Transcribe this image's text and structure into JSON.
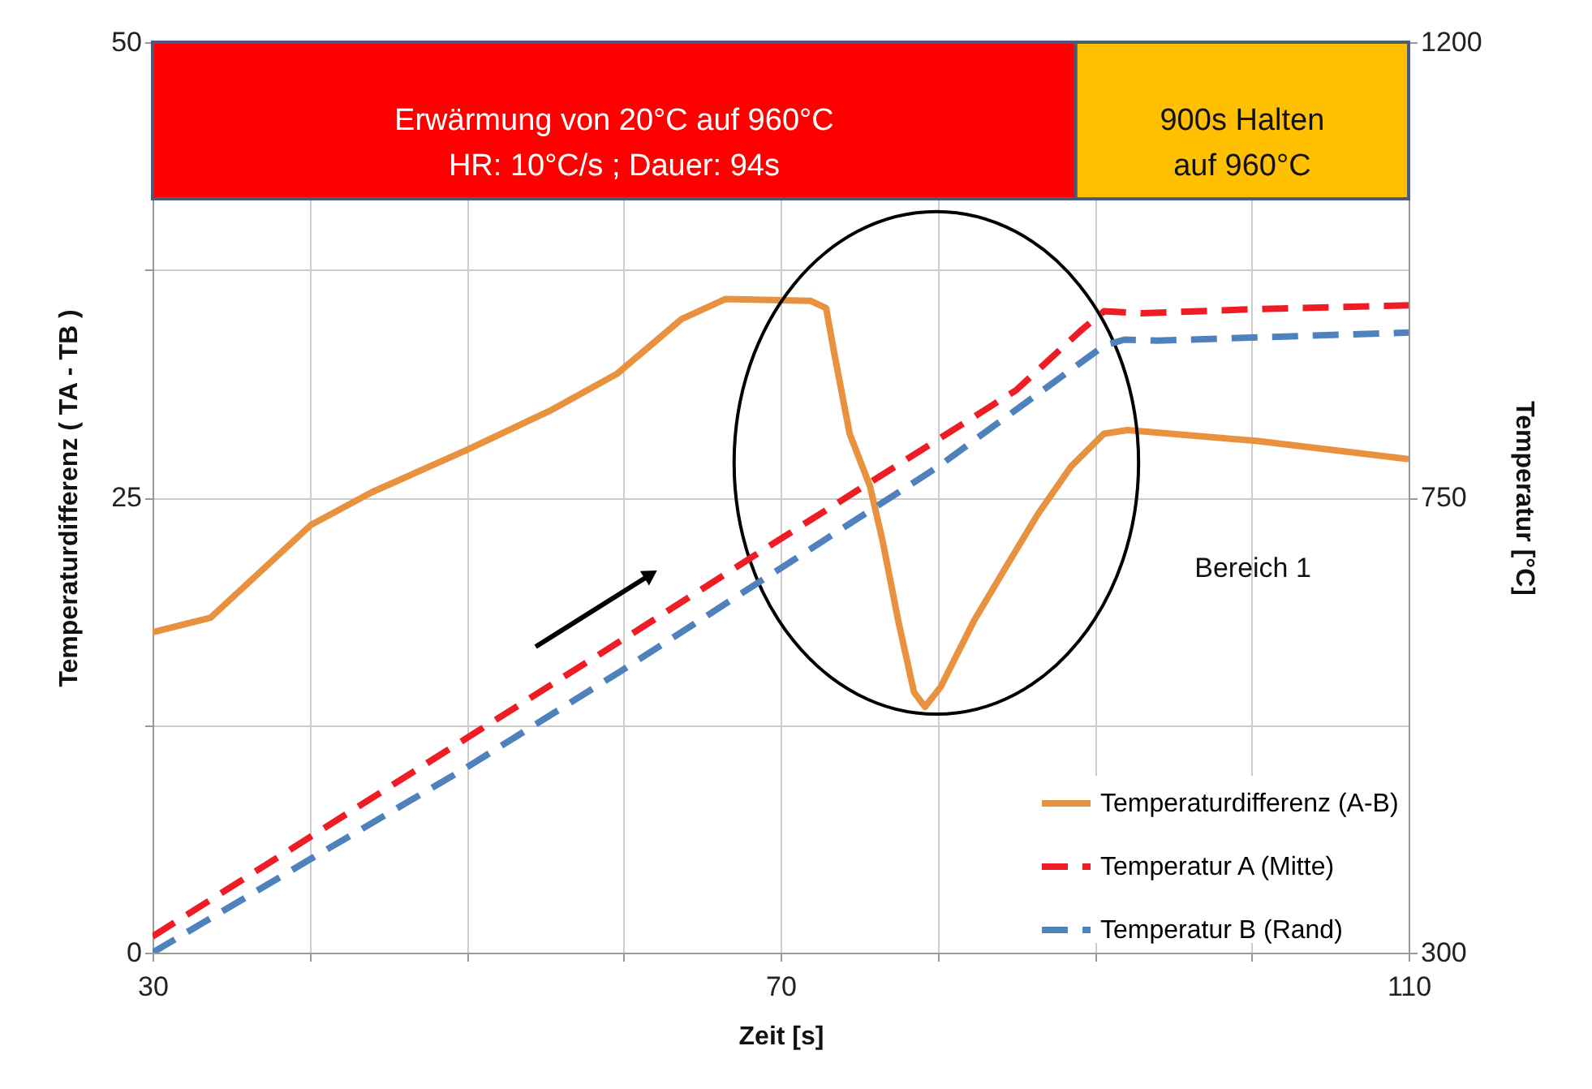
{
  "chart_data": {
    "type": "line",
    "xlabel": "Zeit [s]",
    "ylabel": "Temperaturdifferenz ( TA - TB )",
    "y2label": "Temperatur  [°C]",
    "xlim": [
      30,
      110
    ],
    "xticks": [
      30,
      {
        "value": 40,
        "label": null
      },
      {
        "value": 50,
        "label": null
      },
      {
        "value": 60,
        "label": null
      },
      70,
      {
        "value": 80,
        "label": null
      },
      {
        "value": 90,
        "label": null
      },
      {
        "value": 100,
        "label": null
      },
      110
    ],
    "ylim": [
      0,
      50
    ],
    "yticks": [
      0,
      {
        "value": 12.5,
        "label": null
      },
      25,
      {
        "value": 37.5,
        "label": null
      },
      50
    ],
    "y2lim": [
      300,
      1200
    ],
    "y2ticks": [
      300,
      750,
      1200
    ],
    "grid": true,
    "legend": "bottom right",
    "series": [
      {
        "name": "Temperaturdifferenz (A-B)",
        "color": "#e8913f",
        "line_style": "solid",
        "x": [
          30,
          33.7,
          40.1,
          44,
          50,
          55.4,
          59.6,
          63.7,
          66.5,
          71.9,
          72.9,
          73.4,
          74.4,
          75.7,
          76.5,
          77.5,
          78.5,
          79.2,
          80.2,
          82.3,
          84.3,
          86.4,
          88.5,
          90.6,
          92.1,
          100.4,
          110
        ],
        "values": [
          17.6,
          18.4,
          23.5,
          25.3,
          27.6,
          29.8,
          31.8,
          34.8,
          35.9,
          35.8,
          35.4,
          33.0,
          28.5,
          25.6,
          22.6,
          18.2,
          14.3,
          13.5,
          14.6,
          18.2,
          21.1,
          24.1,
          26.7,
          28.5,
          28.7,
          28.1,
          27.1
        ]
      },
      {
        "name": "Temperatur A (Mitte)",
        "color": "#ee1c25",
        "line_style": "dashed",
        "axis": "y2",
        "x": [
          30,
          40,
          50,
          60,
          70,
          80,
          85,
          89.2,
          90.6,
          93,
          100,
          110
        ],
        "values": [
          316,
          414,
          512,
          610,
          709,
          807,
          856,
          916,
          934,
          932,
          936,
          940
        ]
      },
      {
        "name": "Temperatur B (Rand)",
        "color": "#4f81bd",
        "line_style": "dashed",
        "axis": "y2",
        "x": [
          30,
          40,
          50,
          60,
          70,
          80,
          82.9,
          90.6,
          91.9,
          94,
          110
        ],
        "values": [
          300,
          392,
          483,
          580,
          680,
          780,
          813,
          900,
          906,
          905,
          913
        ]
      }
    ],
    "bands": [
      {
        "axis": "x",
        "from": 30,
        "to": 88.8,
        "label": "Erwärmung von 20°C auf 960°C\nHR: 10°C/s ; Dauer: 94s",
        "color": "#ff0000"
      },
      {
        "axis": "x",
        "from": 88.8,
        "to": 110,
        "label": "900s Halten\nauf 960°C",
        "color": "#ffc000"
      }
    ],
    "annotations": [
      "Bereich 1"
    ]
  }
}
